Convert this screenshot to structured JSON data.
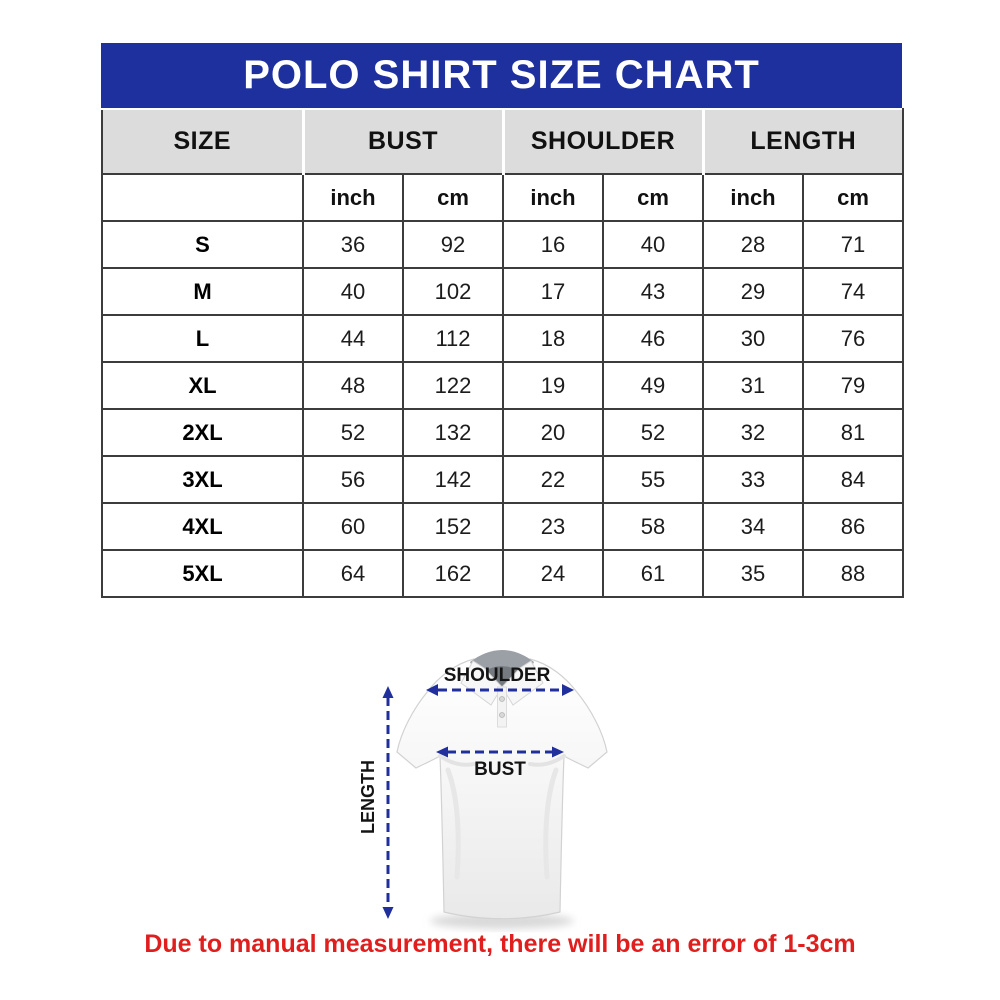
{
  "title": "POLO SHIRT SIZE CHART",
  "chart_data": {
    "type": "table",
    "title": "POLO SHIRT SIZE CHART",
    "column_groups": [
      "SIZE",
      "BUST",
      "SHOULDER",
      "LENGTH"
    ],
    "unit_headers": [
      "inch",
      "cm",
      "inch",
      "cm",
      "inch",
      "cm"
    ],
    "rows": [
      {
        "size": "S",
        "values": [
          36,
          92,
          16,
          40,
          28,
          71
        ]
      },
      {
        "size": "M",
        "values": [
          40,
          102,
          17,
          43,
          29,
          74
        ]
      },
      {
        "size": "L",
        "values": [
          44,
          112,
          18,
          46,
          30,
          76
        ]
      },
      {
        "size": "XL",
        "values": [
          48,
          122,
          19,
          49,
          31,
          79
        ]
      },
      {
        "size": "2XL",
        "values": [
          52,
          132,
          20,
          52,
          32,
          81
        ]
      },
      {
        "size": "3XL",
        "values": [
          56,
          142,
          22,
          55,
          33,
          84
        ]
      },
      {
        "size": "4XL",
        "values": [
          60,
          152,
          23,
          58,
          34,
          86
        ]
      },
      {
        "size": "5XL",
        "values": [
          64,
          162,
          24,
          61,
          35,
          88
        ]
      }
    ]
  },
  "diagram": {
    "shoulder_label": "SHOULDER",
    "bust_label": "BUST",
    "length_label": "LENGTH"
  },
  "footnote": "Due to manual measurement, there will be an error of 1-3cm",
  "colors": {
    "banner_blue": "#1e2f9e",
    "header_gray": "#dcdcdc",
    "table_line": "#3c3c3c",
    "arrow_blue": "#212f9c",
    "note_red": "#e01e1e"
  }
}
